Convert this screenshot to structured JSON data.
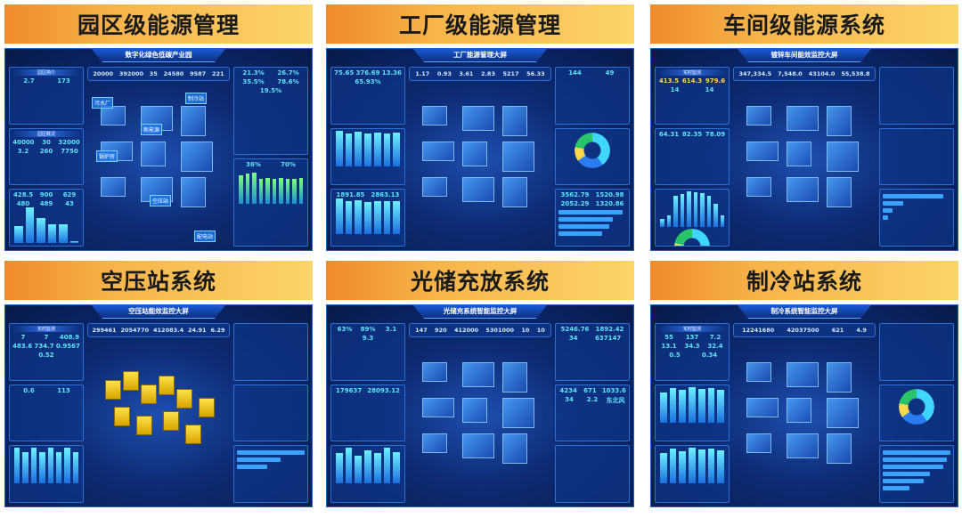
{
  "cards": [
    {
      "heading": "园区级能源管理",
      "screen_title": "数字化绿色低碳产业园",
      "kpis": [
        "20000",
        "392000",
        "35",
        "24580",
        "9587",
        "221"
      ],
      "left": [
        {
          "title": "园区简介",
          "values": [
            "2.7",
            "173"
          ]
        },
        {
          "title": "园区概况",
          "values": [
            "40000",
            "30",
            "32000",
            "3.2",
            "260",
            "7750"
          ]
        },
        {
          "title": "",
          "values": [
            "428.5",
            "900",
            "629",
            "480",
            "489",
            "43"
          ]
        }
      ],
      "right": [
        {
          "title": "",
          "values": [
            "21.3%",
            "26.7%",
            "35.5%",
            "78.6%",
            "19.5%"
          ]
        },
        {
          "title": "",
          "values": [
            "36%",
            "70%"
          ]
        }
      ],
      "tags": [
        "污水厂",
        "新能源",
        "锅炉房",
        "空压站",
        "配电站",
        "制冷站"
      ],
      "bars": [
        428.5,
        900,
        629,
        480,
        489,
        43
      ],
      "right_bars": [
        80,
        85,
        88,
        70,
        72,
        70,
        72,
        70,
        71,
        72
      ]
    },
    {
      "heading": "工厂级能源管理",
      "screen_title": "工厂能源管理大屏",
      "kpis": [
        "1.17",
        "0.93",
        "3.61",
        "2.83",
        "5217",
        "56.33"
      ],
      "left": [
        {
          "title": "",
          "values": [
            "75.65",
            "376.69",
            "13.36",
            "65.93%"
          ]
        },
        {
          "title": "",
          "values": []
        },
        {
          "title": "",
          "values": [
            "1891.85",
            "2863.13"
          ]
        }
      ],
      "right": [
        {
          "title": "",
          "values": [
            "144",
            "49"
          ]
        },
        {
          "title": "",
          "values": []
        },
        {
          "title": "",
          "values": [
            "3562.79",
            "1520.98",
            "2052.29",
            "1320.86"
          ]
        }
      ],
      "bars": [
        70,
        65,
        68,
        64,
        66,
        65,
        66
      ],
      "right_bars": [
        95,
        80,
        75,
        65
      ]
    },
    {
      "heading": "车间级能源系统",
      "screen_title": "镀锌车间能效监控大屏",
      "kpis": [
        "347,334.5",
        "7,548.0",
        "43104.0",
        "55,538.8"
      ],
      "left": [
        {
          "title": "实时监测",
          "values": [
            "413.5",
            "614.3",
            "979.6",
            "14",
            "14"
          ]
        },
        {
          "title": "",
          "values": [
            "64.31",
            "82.35",
            "78.09"
          ]
        },
        {
          "title": "",
          "values": []
        }
      ],
      "right": [
        {
          "title": "",
          "values": []
        },
        {
          "title": "",
          "values": []
        },
        {
          "title": "",
          "values": []
        }
      ],
      "bars": [
        20,
        30,
        80,
        85,
        90,
        88,
        86,
        80,
        60,
        30
      ],
      "right_bars": [
        90,
        30,
        15,
        8
      ]
    },
    {
      "heading": "空压站系统",
      "screen_title": "空压站能效监控大屏",
      "kpis": [
        "299461",
        "2054770",
        "412083.4",
        "24.91",
        "6.29"
      ],
      "left": [
        {
          "title": "实时监测",
          "values": [
            "7",
            "7",
            "408.9",
            "483.6",
            "734.7",
            "0.9567",
            "0.52"
          ]
        },
        {
          "title": "",
          "values": [
            "0.6",
            "113"
          ]
        },
        {
          "title": "",
          "values": []
        }
      ],
      "right": [
        {
          "title": "",
          "values": []
        },
        {
          "title": "",
          "values": []
        },
        {
          "title": "",
          "values": []
        }
      ],
      "bars": [
        80,
        70,
        80,
        70,
        80,
        70,
        80,
        70
      ],
      "right_bars": [
        100,
        65,
        45
      ]
    },
    {
      "heading": "光储充放系统",
      "screen_title": "光储充系统智能监控大屏",
      "kpis": [
        "147",
        "920",
        "412000",
        "5301000",
        "10",
        "10"
      ],
      "left": [
        {
          "title": "",
          "values": [
            "63%",
            "89%",
            "3.1",
            "9.3"
          ]
        },
        {
          "title": "",
          "values": [
            "179637",
            "28093.12"
          ]
        },
        {
          "title": "",
          "values": []
        }
      ],
      "right": [
        {
          "title": "",
          "values": [
            "5246.76",
            "1892.42",
            "34",
            "637147"
          ]
        },
        {
          "title": "",
          "values": [
            "4234",
            "671",
            "1033.6",
            "34",
            "2.2",
            "东北风"
          ]
        },
        {
          "title": "",
          "values": []
        }
      ],
      "bars": [
        60,
        70,
        55,
        65,
        60,
        70,
        62
      ],
      "right_bars": []
    },
    {
      "heading": "制冷站系统",
      "screen_title": "制冷系统智能监控大屏",
      "kpis": [
        "12241680",
        "42037500",
        "621",
        "4.9"
      ],
      "left": [
        {
          "title": "实时监测",
          "values": [
            "55",
            "137",
            "7.2",
            "13.1",
            "34.3",
            "32.4",
            "0.5",
            "0.34"
          ]
        },
        {
          "title": "",
          "values": []
        },
        {
          "title": "",
          "values": []
        }
      ],
      "right": [
        {
          "title": "",
          "values": []
        },
        {
          "title": "",
          "values": []
        },
        {
          "title": "",
          "values": []
        }
      ],
      "bars": [
        70,
        80,
        75,
        82,
        78,
        80,
        76
      ],
      "right_bars": [
        100,
        95,
        90,
        70,
        60,
        40
      ]
    }
  ]
}
